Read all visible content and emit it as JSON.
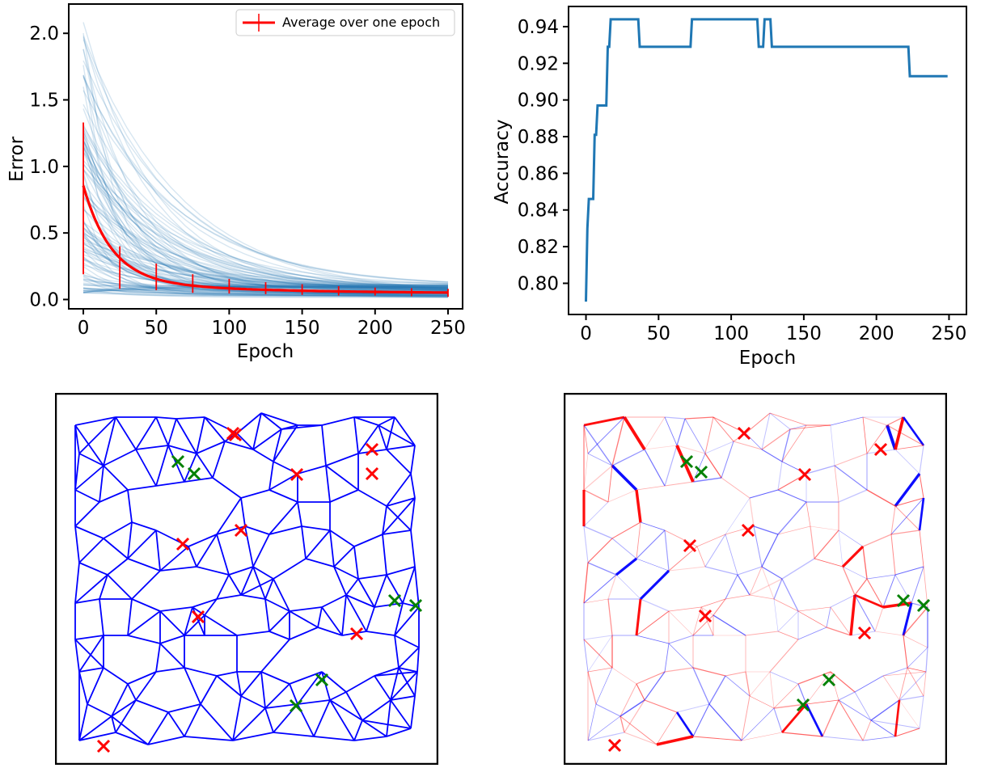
{
  "chart_data": [
    {
      "type": "scatter",
      "xlabel": "Epoch",
      "ylabel": "Error",
      "xlim": [
        -10,
        260
      ],
      "ylim": [
        -0.07,
        2.22
      ],
      "xticks": [
        "0",
        "50",
        "100",
        "150",
        "200",
        "250"
      ],
      "yticks": [
        "0.0",
        "0.5",
        "1.0",
        "1.5",
        "2.0"
      ],
      "grid": false,
      "legend": {
        "placement": "top-right",
        "entries": [
          "Average over one epoch"
        ]
      },
      "series": [
        {
          "name": "Average over one epoch",
          "kind": "errorbar-line",
          "color": "#ff0000",
          "x": [
            0,
            25,
            50,
            75,
            100,
            125,
            150,
            175,
            200,
            225,
            250
          ],
          "y": [
            0.76,
            0.24,
            0.17,
            0.12,
            0.1,
            0.085,
            0.075,
            0.065,
            0.06,
            0.055,
            0.05
          ],
          "err": [
            0.57,
            0.16,
            0.1,
            0.07,
            0.055,
            0.045,
            0.04,
            0.035,
            0.03,
            0.03,
            0.03
          ]
        },
        {
          "kind": "samples",
          "color": "#1f77b4",
          "description_of_spread": "individual sample errors per epoch, dense near the mean, up to about 2.1 at epoch 0"
        }
      ]
    },
    {
      "type": "line",
      "xlabel": "Epoch",
      "ylabel": "Accuracy",
      "xlim": [
        -12,
        262
      ],
      "ylim": [
        0.783,
        0.951
      ],
      "xticks": [
        "0",
        "50",
        "100",
        "150",
        "200",
        "250"
      ],
      "yticks": [
        "0.80",
        "0.82",
        "0.84",
        "0.86",
        "0.88",
        "0.90",
        "0.92",
        "0.94"
      ],
      "grid": false,
      "series": [
        {
          "color": "#1f77b4",
          "x": [
            0,
            1,
            2,
            3,
            5,
            6,
            7,
            8,
            14,
            15,
            16,
            17,
            18,
            36,
            37,
            72,
            73,
            118,
            119,
            122,
            123,
            127,
            128,
            222,
            223,
            249
          ],
          "y": [
            0.79,
            0.83,
            0.846,
            0.846,
            0.846,
            0.881,
            0.881,
            0.897,
            0.897,
            0.929,
            0.929,
            0.944,
            0.944,
            0.944,
            0.929,
            0.929,
            0.944,
            0.944,
            0.929,
            0.929,
            0.944,
            0.944,
            0.929,
            0.929,
            0.913,
            0.913
          ]
        }
      ]
    },
    {
      "type": "graph",
      "panel": "network-uniform",
      "edge_color": "#0000ff",
      "red_marker_count": 10,
      "green_marker_count": 6
    },
    {
      "type": "graph",
      "panel": "network-weighted",
      "edge_colors": [
        "#0000ff",
        "#ff0000"
      ],
      "red_marker_count": 10,
      "green_marker_count": 6
    }
  ]
}
